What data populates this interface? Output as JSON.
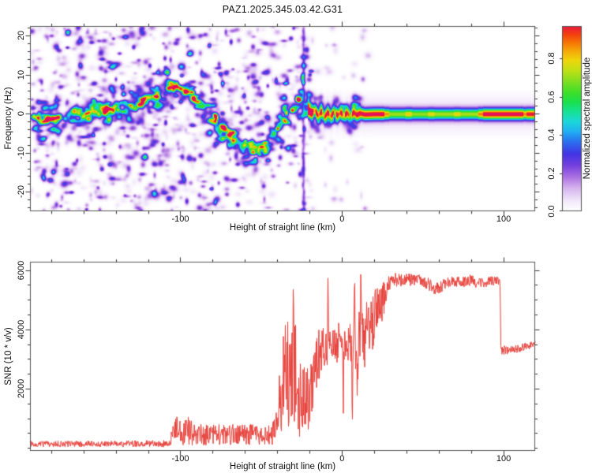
{
  "title": "PAZ1.2025.345.03.42.G31",
  "frame_color": "#555555",
  "tick_color": "#333333",
  "text_color": "#111111",
  "chart_data": [
    {
      "type": "heatmap",
      "description": "Radio-occultation spectrogram: normalized spectral amplitude vs height of straight line and frequency",
      "xlabel": "Height of straight line (km)",
      "ylabel": "Frequency (Hz)",
      "xlim": [
        -193,
        119.5
      ],
      "ylim": [
        -25,
        22.5
      ],
      "x_major_ticks": [
        -100,
        0,
        100
      ],
      "x_tick_labels": [
        "-100",
        "0",
        "100"
      ],
      "x_minor_step": 20,
      "y_major_ticks": [
        -20,
        -10,
        0,
        10,
        20
      ],
      "y_tick_labels": [
        "-20",
        "-10",
        "0",
        "10",
        "20"
      ],
      "y_minor_step": 2,
      "grid": false,
      "colorbar": {
        "label": "Normalized spectral amplitude",
        "ticks": [
          0,
          0.2,
          0.4,
          0.6,
          0.8
        ],
        "tick_labels": [
          "0.0",
          "0.2",
          "0.4",
          "0.6",
          "0.8"
        ],
        "vmax_top": 0.97
      },
      "colormap": [
        [
          0.0,
          "#ffffff"
        ],
        [
          0.05,
          "#f3eafa"
        ],
        [
          0.12,
          "#d6b4ee"
        ],
        [
          0.18,
          "#a96ee2"
        ],
        [
          0.24,
          "#7340de"
        ],
        [
          0.3,
          "#4234e4"
        ],
        [
          0.36,
          "#2b6cee"
        ],
        [
          0.42,
          "#21b2f2"
        ],
        [
          0.47,
          "#1bd8da"
        ],
        [
          0.52,
          "#16e196"
        ],
        [
          0.57,
          "#19e050"
        ],
        [
          0.62,
          "#3cde2a"
        ],
        [
          0.68,
          "#7ede20"
        ],
        [
          0.74,
          "#c2e015"
        ],
        [
          0.79,
          "#eed60c"
        ],
        [
          0.84,
          "#f5a908"
        ],
        [
          0.89,
          "#f66f05"
        ],
        [
          0.93,
          "#f33d10"
        ],
        [
          0.97,
          "#eb1a3c"
        ],
        [
          1.0,
          "#e61060"
        ]
      ],
      "band_path": [
        [
          -193,
          -1
        ],
        [
          -186,
          -1.6
        ],
        [
          -179,
          -0.6
        ],
        [
          -171,
          -1.2
        ],
        [
          -163,
          0
        ],
        [
          -155,
          0.6
        ],
        [
          -147,
          1
        ],
        [
          -139,
          1.6
        ],
        [
          -131,
          2.2
        ],
        [
          -124,
          3
        ],
        [
          -118,
          4.2
        ],
        [
          -112,
          5.6
        ],
        [
          -106,
          6.8
        ],
        [
          -100,
          7
        ],
        [
          -95,
          5.6
        ],
        [
          -90,
          3.6
        ],
        [
          -85,
          1.6
        ],
        [
          -80,
          -1
        ],
        [
          -75,
          -3.4
        ],
        [
          -70,
          -5.4
        ],
        [
          -65,
          -7
        ],
        [
          -60,
          -8
        ],
        [
          -55,
          -9.2
        ],
        [
          -50,
          -8.6
        ],
        [
          -46,
          -7
        ],
        [
          -42,
          -5
        ],
        [
          -38,
          -3
        ],
        [
          -34,
          -1
        ],
        [
          -30,
          1
        ],
        [
          -27,
          3
        ],
        [
          -25,
          4.2
        ],
        [
          -23,
          1.5
        ],
        [
          -21,
          0.6
        ],
        [
          -19,
          0.4
        ]
      ],
      "bright_spots": [
        {
          "km": -188,
          "hz": -1,
          "a": 0.5
        },
        {
          "km": -185,
          "hz": -2,
          "a": 0.62
        },
        {
          "km": -175,
          "hz": -1,
          "a": 0.42
        },
        {
          "km": -163,
          "hz": 0,
          "a": 0.45
        },
        {
          "km": -146,
          "hz": 1,
          "a": 0.45
        },
        {
          "km": -126,
          "hz": 2.5,
          "a": 0.45
        },
        {
          "km": -115,
          "hz": 4.5,
          "a": 0.45
        },
        {
          "km": -104,
          "hz": 7,
          "a": 0.6
        },
        {
          "km": -100,
          "hz": 6.5,
          "a": 0.66
        },
        {
          "km": -97,
          "hz": 5.5,
          "a": 0.5
        },
        {
          "km": -93,
          "hz": 4,
          "a": 0.5
        },
        {
          "km": -79,
          "hz": -2,
          "a": 0.5
        },
        {
          "km": -69,
          "hz": -5,
          "a": 0.52
        },
        {
          "km": -60,
          "hz": -8,
          "a": 0.55
        },
        {
          "km": -52,
          "hz": -9,
          "a": 0.5
        },
        {
          "km": -48,
          "hz": -7.5,
          "a": 0.52
        },
        {
          "km": -42,
          "hz": -5,
          "a": 0.5
        },
        {
          "km": -36,
          "hz": -1.5,
          "a": 0.55
        },
        {
          "km": -31,
          "hz": 1,
          "a": 0.5
        },
        {
          "km": -27,
          "hz": 3.5,
          "a": 0.55
        }
      ],
      "streak_km": -24,
      "stripe_path": [
        [
          -21,
          1
        ],
        [
          -19,
          0.2
        ],
        [
          -17,
          1
        ],
        [
          -15,
          -0.4
        ],
        [
          -13,
          0.6
        ],
        [
          -11,
          -0.7
        ],
        [
          -9,
          0.4
        ],
        [
          -7,
          -0.5
        ],
        [
          -5,
          0.7
        ],
        [
          -3,
          -0.3
        ],
        [
          -1,
          0.4
        ],
        [
          1,
          -0.4
        ],
        [
          3,
          0.3
        ],
        [
          5,
          -0.5
        ],
        [
          7,
          0.4
        ],
        [
          9,
          -0.2
        ],
        [
          11,
          0.2
        ],
        [
          14,
          -0.1
        ],
        [
          20,
          0
        ],
        [
          119.5,
          0
        ]
      ],
      "stripe_amp_segments": [
        [
          -20.8,
          -19.4,
          0.88
        ],
        [
          -19.4,
          -18,
          0.96
        ],
        [
          -18,
          -16.6,
          0.72
        ],
        [
          -16.6,
          -15.2,
          0.96
        ],
        [
          -15.2,
          -13.8,
          0.8
        ],
        [
          -13.8,
          -12.4,
          0.96
        ],
        [
          -12.4,
          -11,
          0.66
        ],
        [
          -11,
          -9.6,
          0.92
        ],
        [
          -9.6,
          -8.2,
          0.96
        ],
        [
          -8.2,
          -6.8,
          0.76
        ],
        [
          -6.8,
          -5.4,
          0.96
        ],
        [
          -5.4,
          -4,
          0.62
        ],
        [
          -4,
          -2.6,
          0.96
        ],
        [
          -2.6,
          -1.2,
          0.82
        ],
        [
          -1.2,
          0.2,
          0.95
        ],
        [
          0.2,
          1.6,
          0.7
        ],
        [
          1.6,
          3,
          0.96
        ],
        [
          3,
          4.4,
          0.86
        ],
        [
          4.4,
          5.8,
          0.62
        ],
        [
          5.8,
          7.2,
          0.96
        ],
        [
          7.2,
          8.6,
          0.9
        ],
        [
          8.6,
          10.3,
          0.95
        ],
        [
          10.3,
          12,
          0.93
        ],
        [
          12,
          26,
          0.94
        ],
        [
          26,
          29,
          0.78
        ],
        [
          29,
          39,
          0.63
        ],
        [
          39,
          43,
          0.72
        ],
        [
          43,
          53,
          0.62
        ],
        [
          53,
          57,
          0.7
        ],
        [
          57,
          69,
          0.64
        ],
        [
          69,
          73,
          0.71
        ],
        [
          73,
          84,
          0.64
        ],
        [
          84,
          87,
          0.8
        ],
        [
          87,
          112,
          0.94
        ],
        [
          112,
          114,
          0.8
        ],
        [
          114,
          119.5,
          0.9
        ]
      ],
      "noise_region": {
        "x_range": [
          -192.5,
          -19
        ],
        "freq_range": [
          -25,
          22.5
        ]
      }
    },
    {
      "type": "line",
      "description": "Signal-to-noise ratio profile",
      "xlabel": "Height of straight line (km)",
      "ylabel": "SNR (10 * v/v)",
      "xlim": [
        -193,
        119.5
      ],
      "ylim": [
        -100,
        6280
      ],
      "x_major_ticks": [
        -100,
        0,
        100
      ],
      "x_tick_labels": [
        "-100",
        "0",
        "100"
      ],
      "x_minor_step": 20,
      "y_major_ticks": [
        2000,
        4000,
        6000
      ],
      "y_tick_labels": [
        "2000",
        "4000",
        "6000"
      ],
      "y_minor_step": 500,
      "grid": false,
      "line_color": "#e8403a",
      "envelope": [
        [
          -193,
          30,
          230
        ],
        [
          -160,
          30,
          240
        ],
        [
          -130,
          30,
          250
        ],
        [
          -107,
          30,
          260
        ],
        [
          -104,
          60,
          900
        ],
        [
          -100,
          80,
          1250
        ],
        [
          -96,
          80,
          1100
        ],
        [
          -90,
          80,
          800
        ],
        [
          -80,
          100,
          850
        ],
        [
          -70,
          100,
          800
        ],
        [
          -60,
          100,
          850
        ],
        [
          -50,
          100,
          750
        ],
        [
          -43,
          100,
          800
        ],
        [
          -40,
          100,
          1600
        ],
        [
          -38,
          120,
          2500
        ],
        [
          -36,
          150,
          4200
        ],
        [
          -34,
          150,
          4500
        ],
        [
          -31,
          200,
          5000
        ],
        [
          -30,
          250,
          5750
        ],
        [
          -29,
          200,
          4400
        ],
        [
          -27,
          250,
          3700
        ],
        [
          -25,
          600,
          3300
        ],
        [
          -23,
          500,
          2800
        ],
        [
          -21,
          600,
          2700
        ],
        [
          -19,
          1000,
          3100
        ],
        [
          -17,
          1500,
          3600
        ],
        [
          -15,
          2000,
          4100
        ],
        [
          -13,
          2300,
          4200
        ],
        [
          -11,
          2500,
          4100
        ],
        [
          -9.2,
          2700,
          4400
        ],
        [
          -8,
          2700,
          4000
        ],
        [
          -6,
          2900,
          3900
        ],
        [
          -4,
          2800,
          4200
        ],
        [
          -2,
          2900,
          4400
        ],
        [
          0,
          2900,
          4300
        ],
        [
          2,
          3000,
          4300
        ],
        [
          4,
          2900,
          4200
        ],
        [
          6,
          2700,
          4200
        ],
        [
          8,
          2200,
          4400
        ],
        [
          10,
          2300,
          4700
        ],
        [
          12,
          2500,
          4600
        ],
        [
          14,
          2500,
          4700
        ],
        [
          16,
          2900,
          5100
        ],
        [
          18,
          3100,
          5300
        ],
        [
          20,
          3400,
          5500
        ],
        [
          23,
          3800,
          5600
        ],
        [
          26,
          4500,
          5700
        ],
        [
          28,
          5200,
          5800
        ],
        [
          32,
          5400,
          5900
        ],
        [
          40,
          5450,
          5900
        ],
        [
          48,
          5450,
          5850
        ],
        [
          53,
          5350,
          5750
        ],
        [
          57,
          5150,
          5600
        ],
        [
          60,
          5200,
          5600
        ],
        [
          64,
          5350,
          5750
        ],
        [
          72,
          5400,
          5800
        ],
        [
          80,
          5450,
          5850
        ],
        [
          86,
          5350,
          5750
        ],
        [
          92,
          5500,
          5820
        ],
        [
          97,
          5450,
          5800
        ],
        [
          97.8,
          5400,
          5700
        ],
        [
          98.3,
          3150,
          3500
        ],
        [
          102,
          3150,
          3450
        ],
        [
          108,
          3200,
          3500
        ],
        [
          114,
          3300,
          3550
        ],
        [
          119.5,
          3380,
          3600
        ]
      ],
      "spikes": [
        {
          "x": -38.7,
          "v": 2450,
          "w": 0.4
        },
        {
          "x": -30.2,
          "v": 5780,
          "w": 0.45
        },
        {
          "x": -8.6,
          "v": 6120,
          "w": 0.45
        },
        {
          "x": 7.8,
          "v": 6340,
          "w": 0.5
        },
        {
          "x": 11.7,
          "v": 6300,
          "w": 0.45
        }
      ],
      "notches": [
        {
          "x": -33,
          "v": 200,
          "w": 0.5
        },
        {
          "x": -24.5,
          "v": 550,
          "w": 0.4
        },
        {
          "x": -20.8,
          "v": 300,
          "w": 0.5
        },
        {
          "x": 0.8,
          "v": 760,
          "w": 0.4
        },
        {
          "x": 6.4,
          "v": 720,
          "w": 0.5
        },
        {
          "x": 9.4,
          "v": 1750,
          "w": 0.5
        }
      ]
    }
  ]
}
